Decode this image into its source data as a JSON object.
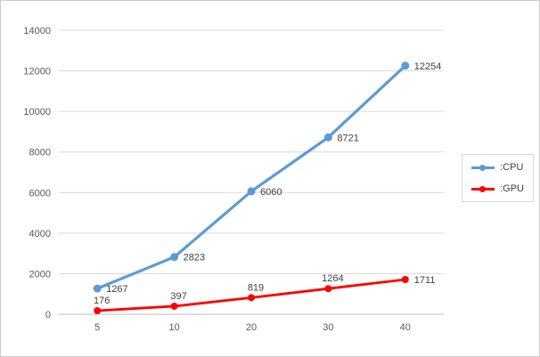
{
  "chart_data": {
    "type": "line",
    "categories": [
      "5",
      "10",
      "20",
      "30",
      "40"
    ],
    "series": [
      {
        "name": "CPU",
        "legend_label": ":CPU",
        "color": "#5B9BD5",
        "values": [
          1267,
          2823,
          6060,
          8721,
          12254
        ]
      },
      {
        "name": "GPU",
        "legend_label": ":GPU",
        "color": "#FF0000",
        "values": [
          176,
          397,
          819,
          1264,
          1711
        ]
      }
    ],
    "title": "",
    "xlabel": "",
    "ylabel": "",
    "ylim": [
      0,
      14000
    ],
    "ytick_step": 2000,
    "grid": true,
    "legend_position": "right",
    "data_labels_shown": true
  },
  "colors": {
    "grid": "#d9d9d9",
    "axis_text": "#595959",
    "data_label": "#404040",
    "background": "#ffffff",
    "border": "#cccccc"
  }
}
